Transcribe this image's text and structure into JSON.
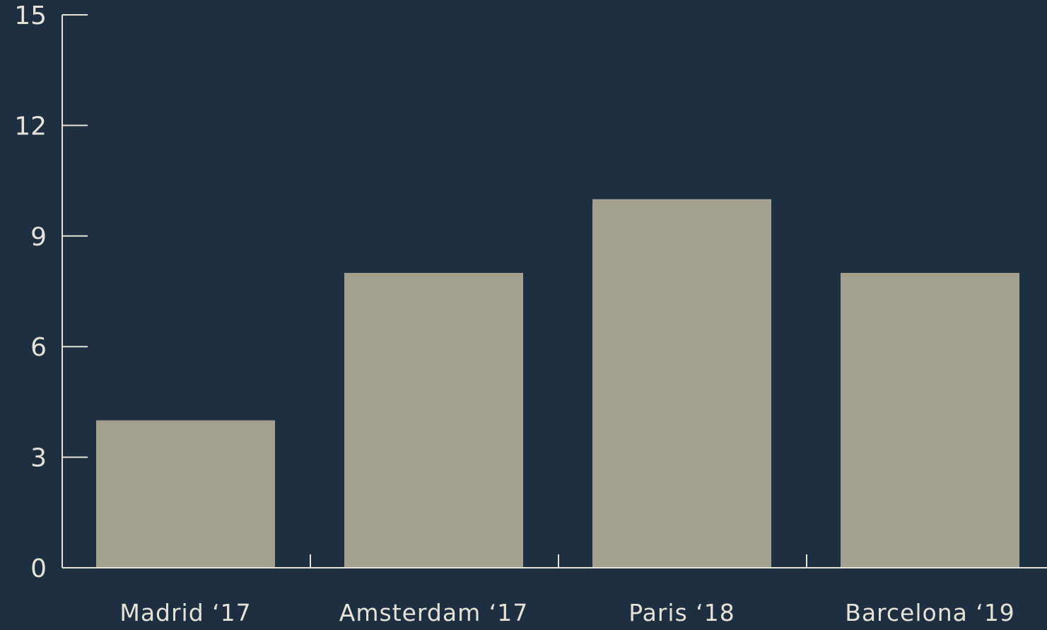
{
  "colors": {
    "background": "#1e2f42",
    "bar": "#a3a08e",
    "axis": "#e6e2d6",
    "text": "#e6e2d6"
  },
  "chart_data": {
    "type": "bar",
    "categories": [
      "Madrid ‘17",
      "Amsterdam ‘17",
      "Paris ‘18",
      "Barcelona ‘19"
    ],
    "values": [
      4,
      8,
      10,
      8
    ],
    "title": "",
    "xlabel": "",
    "ylabel": "",
    "ylim": [
      0,
      15
    ],
    "yticks": [
      0,
      3,
      6,
      9,
      12,
      15
    ],
    "grid": false,
    "legend": "none"
  }
}
